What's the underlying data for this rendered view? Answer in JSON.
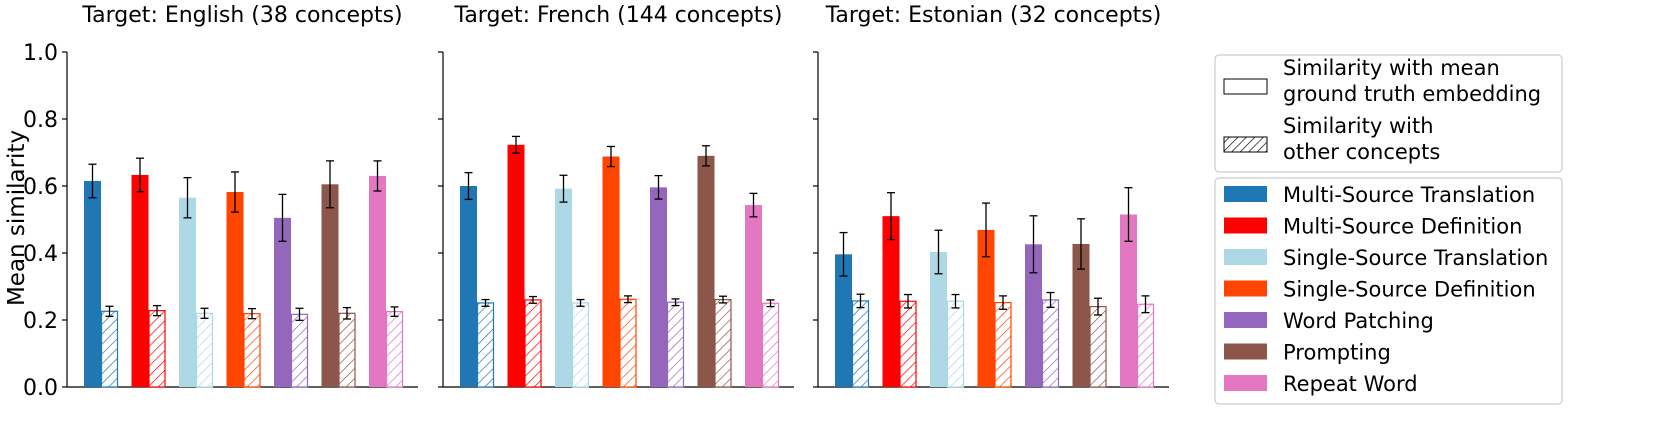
{
  "chart_data": {
    "type": "bar",
    "ylabel": "Mean similarity",
    "ylim": [
      0,
      1
    ],
    "yticks": [
      0.0,
      0.2,
      0.4,
      0.6,
      0.8,
      1.0
    ],
    "ytick_labels": [
      "0.0",
      "0.2",
      "0.4",
      "0.6",
      "0.8",
      "1.0"
    ],
    "methods": [
      {
        "name": "Multi-Source Translation",
        "color": "#1f77b4"
      },
      {
        "name": "Multi-Source Definition",
        "color": "#ff0000"
      },
      {
        "name": "Single-Source Translation",
        "color": "#add8e6"
      },
      {
        "name": "Single-Source Definition",
        "color": "#ff4500"
      },
      {
        "name": "Word Patching",
        "color": "#9467bd"
      },
      {
        "name": "Prompting",
        "color": "#8c564b"
      },
      {
        "name": "Repeat Word",
        "color": "#e377c2"
      }
    ],
    "bar_kinds": [
      {
        "label": "Similarity with mean ground truth embedding",
        "legend_lines": [
          "Similarity with mean",
          "ground truth embedding"
        ],
        "style": "solid"
      },
      {
        "label": "Similarity with other concepts",
        "legend_lines": [
          "Similarity with",
          "other concepts"
        ],
        "style": "hatched"
      }
    ],
    "panels": [
      {
        "title": "Target: English (38 concepts)",
        "gt": [
          0.615,
          0.633,
          0.565,
          0.582,
          0.505,
          0.605,
          0.63
        ],
        "gt_err": [
          0.05,
          0.05,
          0.06,
          0.06,
          0.07,
          0.07,
          0.045
        ],
        "other": [
          0.226,
          0.228,
          0.22,
          0.219,
          0.217,
          0.22,
          0.225
        ],
        "other_err": [
          0.015,
          0.015,
          0.015,
          0.015,
          0.018,
          0.017,
          0.014
        ]
      },
      {
        "title": "Target: French (144 concepts)",
        "gt": [
          0.6,
          0.723,
          0.592,
          0.688,
          0.596,
          0.69,
          0.543
        ],
        "gt_err": [
          0.04,
          0.025,
          0.04,
          0.03,
          0.035,
          0.03,
          0.035
        ],
        "other": [
          0.251,
          0.26,
          0.251,
          0.262,
          0.253,
          0.261,
          0.25
        ],
        "other_err": [
          0.01,
          0.01,
          0.01,
          0.01,
          0.01,
          0.01,
          0.01
        ]
      },
      {
        "title": "Target: Estonian (32 concepts)",
        "gt": [
          0.396,
          0.51,
          0.403,
          0.469,
          0.426,
          0.427,
          0.515
        ],
        "gt_err": [
          0.065,
          0.07,
          0.065,
          0.08,
          0.085,
          0.075,
          0.08
        ],
        "other": [
          0.257,
          0.256,
          0.256,
          0.252,
          0.26,
          0.24,
          0.247
        ],
        "other_err": [
          0.02,
          0.02,
          0.02,
          0.02,
          0.022,
          0.025,
          0.025
        ]
      }
    ]
  }
}
